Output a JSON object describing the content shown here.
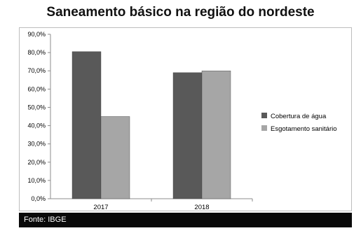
{
  "chart_data": {
    "type": "bar",
    "title": "Saneamento básico na região do nordeste",
    "categories": [
      "2017",
      "2018"
    ],
    "series": [
      {
        "name": "Cobertura de água",
        "values": [
          80.5,
          69.0
        ],
        "color": "#595959"
      },
      {
        "name": "Esgotamento sanitário",
        "values": [
          45.0,
          70.0
        ],
        "color": "#a6a6a6"
      }
    ],
    "ylim": [
      0,
      90
    ],
    "yticks": [
      0,
      10,
      20,
      30,
      40,
      50,
      60,
      70,
      80,
      90
    ],
    "ytick_labels": [
      "0,0%",
      "10,0%",
      "20,0%",
      "30,0%",
      "40,0%",
      "50,0%",
      "60,0%",
      "70,0%",
      "80,0%",
      "90,0%"
    ],
    "xlabel": "",
    "ylabel": "",
    "legend_position": "right",
    "grid": false
  },
  "footer": {
    "source": "Fonte: IBGE"
  }
}
